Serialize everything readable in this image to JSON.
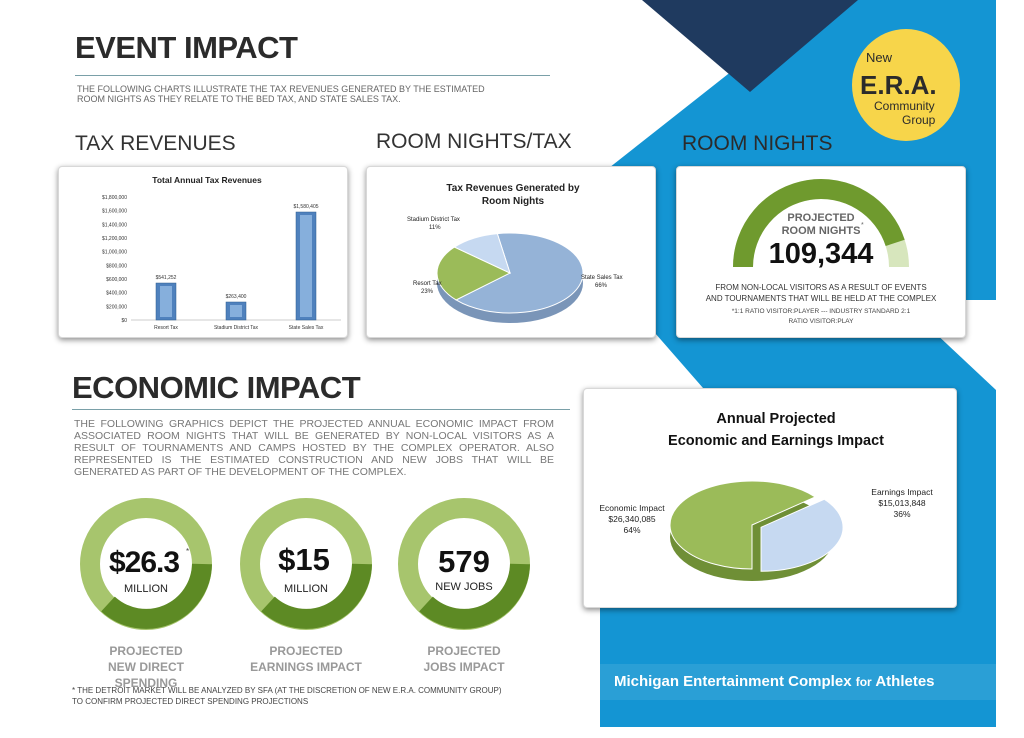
{
  "event_impact": {
    "title": "EVENT IMPACT",
    "description_line1": "THE FOLLOWING CHARTS ILLUSTRATE THE TAX REVENUES GENERATED BY THE ESTIMATED",
    "description_line2": "ROOM NIGHTS AS THEY RELATE TO THE BED TAX, AND STATE SALES TAX."
  },
  "logo": {
    "line1": "New",
    "line2": "E.R.A.",
    "line3": "Community",
    "line4": "Group"
  },
  "sections": {
    "tax_revenues": "TAX REVENUES",
    "room_nights_tax": "ROOM NIGHTS/TAX",
    "room_nights": "ROOM NIGHTS"
  },
  "chart_data": [
    {
      "type": "bar",
      "title": "Total Annual Tax Revenues",
      "categories": [
        "Resort Tax",
        "Stadium District Tax",
        "State Sales Tax"
      ],
      "values": [
        541252,
        263400,
        1580405
      ],
      "data_labels": [
        "$541,252",
        "$263,400",
        "$1,580,405"
      ],
      "ylim": [
        0,
        1800000
      ],
      "yticks": [
        "$0",
        "$200,000",
        "$400,000",
        "$600,000",
        "$800,000",
        "$1,000,000",
        "$1,200,000",
        "$1,400,000",
        "$1,600,000",
        "$1,800,000"
      ],
      "color": "#4f81bd"
    },
    {
      "type": "pie",
      "title_line1": "Tax Revenues Generated by",
      "title_line2": "Room Nights",
      "slices": [
        {
          "name": "State Sales Tax",
          "value": 66,
          "label": "66%",
          "color": "#95b3d7"
        },
        {
          "name": "Resort Tax",
          "value": 23,
          "label": "23%",
          "color": "#9bbb59"
        },
        {
          "name": "Stadium District Tax",
          "value": 11,
          "label": "11%",
          "color": "#c6d9f1"
        }
      ]
    },
    {
      "type": "pie",
      "title_line1": "Annual Projected",
      "title_line2": "Economic and Earnings Impact",
      "slices": [
        {
          "name": "Economic Impact",
          "amount": "$26,340,085",
          "value": 64,
          "label": "64%",
          "color": "#9bbb59"
        },
        {
          "name": "Earnings Impact",
          "amount": "$15,013,848",
          "value": 36,
          "label": "36%",
          "color": "#c6d9f1"
        }
      ]
    }
  ],
  "room_nights_card": {
    "label_line1": "PROJECTED",
    "label_line2": "ROOM NIGHTS",
    "asterisk": "*",
    "value": "109,344",
    "fill_fraction": 0.9,
    "note_line1": "FROM NON-LOCAL VISITORS AS A RESULT OF EVENTS",
    "note_line2": "AND TOURNAMENTS THAT WILL BE HELD AT THE COMPLEX",
    "small_line1": "*1:1 RATIO VISITOR:PLAYER --- INDUSTRY STANDARD 2:1",
    "small_line2": "RATIO VISITOR:PLAY"
  },
  "economic_impact": {
    "title": "ECONOMIC IMPACT",
    "description": "THE FOLLOWING GRAPHICS DEPICT THE PROJECTED ANNUAL ECONOMIC IMPACT FROM ASSOCIATED ROOM NIGHTS THAT WILL BE GENERATED BY NON-LOCAL VISITORS AS A RESULT OF TOURNAMENTS AND CAMPS HOSTED BY THE COMPLEX OPERATOR. ALSO REPRESENTED IS THE ESTIMATED CONSTRUCTION AND NEW JOBS THAT WILL BE GENERATED AS PART OF THE DEVELOPMENT OF THE COMPLEX."
  },
  "rings": [
    {
      "value": "$26.3",
      "asterisk": "*",
      "unit": "MILLION",
      "label_line1": "PROJECTED",
      "label_line2": "NEW DIRECT SPENDING"
    },
    {
      "value": "$15",
      "asterisk": "",
      "unit": "MILLION",
      "label_line1": "PROJECTED",
      "label_line2": "EARNINGS IMPACT"
    },
    {
      "value": "579",
      "asterisk": "",
      "unit": "NEW JOBS",
      "label_line1": "PROJECTED",
      "label_line2": "JOBS IMPACT"
    }
  ],
  "footnote_line1": "* THE DETROIT MARKET WILL BE ANALYZED BY SFA (AT THE DISCRETION OF NEW E.R.A. COMMUNITY GROUP)",
  "footnote_line2": "TO CONFIRM PROJECTED DIRECT SPENDING PROJECTIONS",
  "footer_brand_main": "Michigan Entertainment Complex",
  "footer_brand_for": "for",
  "footer_brand_end": "Athletes",
  "colors": {
    "blue": "#1495d3",
    "navy": "#1f3a5f",
    "green": "#6f9a2e",
    "light_green": "#9bbb59",
    "light_blue": "#c6d9f1"
  }
}
